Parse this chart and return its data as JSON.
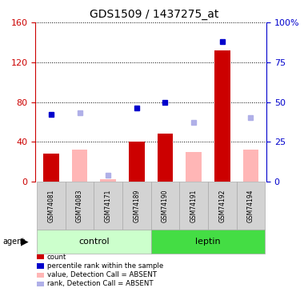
{
  "title": "GDS1509 / 1437275_at",
  "samples": [
    "GSM74081",
    "GSM74083",
    "GSM74171",
    "GSM74189",
    "GSM74190",
    "GSM74191",
    "GSM74192",
    "GSM74194"
  ],
  "count_present": [
    28,
    0,
    0,
    40,
    48,
    0,
    132,
    0
  ],
  "count_absent": [
    0,
    32,
    2,
    0,
    0,
    30,
    0,
    32
  ],
  "rank_present": [
    42,
    0,
    0,
    46,
    50,
    0,
    88,
    0
  ],
  "rank_absent": [
    0,
    43,
    4,
    0,
    0,
    37,
    0,
    40
  ],
  "is_absent": [
    false,
    true,
    true,
    false,
    false,
    true,
    false,
    true
  ],
  "left_ylim": [
    0,
    160
  ],
  "left_yticks": [
    0,
    40,
    80,
    120,
    160
  ],
  "right_ylim": [
    0,
    100
  ],
  "right_yticks": [
    0,
    25,
    50,
    75,
    100
  ],
  "right_yticklabels": [
    "0",
    "25",
    "50",
    "75",
    "100%"
  ],
  "left_axis_color": "#cc0000",
  "right_axis_color": "#0000cc",
  "bar_color_present": "#cc0000",
  "bar_color_absent": "#ffb6b6",
  "rank_color_present": "#0000cc",
  "rank_color_absent": "#b0b0e8",
  "group_bg_light": "#ccffcc",
  "group_bg_dark": "#44dd44",
  "sample_box_color": "#d3d3d3",
  "legend_labels": [
    "count",
    "percentile rank within the sample",
    "value, Detection Call = ABSENT",
    "rank, Detection Call = ABSENT"
  ],
  "legend_colors": [
    "#cc0000",
    "#0000cc",
    "#ffb6b6",
    "#b0b0e8"
  ]
}
